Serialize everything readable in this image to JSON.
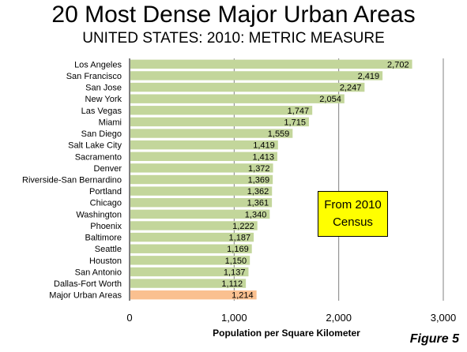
{
  "title": "20 Most Dense Major Urban Areas",
  "subtitle": "UNITED STATES: 2010: METRIC MEASURE",
  "callout": {
    "line1": "From 2010",
    "line2": "Census"
  },
  "figure_label": "Figure 5",
  "colors": {
    "bar": "#c3d69b",
    "highlight_bar": "#fac090",
    "grid": "#808080",
    "callout": "#ffff00"
  },
  "chart_data": {
    "type": "bar",
    "orientation": "horizontal",
    "categories": [
      "Los Angeles",
      "San Francisco",
      "San Jose",
      "New York",
      "Las Vegas",
      "Miami",
      "San Diego",
      "Salt Lake City",
      "Sacramento",
      "Denver",
      "Riverside-San Bernardino",
      "Portland",
      "Chicago",
      "Washington",
      "Phoenix",
      "Baltimore",
      "Seattle",
      "Houston",
      "San Antonio",
      "Dallas-Fort Worth",
      "Major Urban Areas"
    ],
    "values": [
      2702,
      2419,
      2247,
      2054,
      1747,
      1715,
      1559,
      1419,
      1413,
      1372,
      1369,
      1362,
      1361,
      1340,
      1222,
      1187,
      1169,
      1150,
      1137,
      1112,
      1214
    ],
    "value_labels": [
      "2,702",
      "2,419",
      "2,247",
      "2,054",
      "1,747",
      "1,715",
      "1,559",
      "1,419",
      "1,413",
      "1,372",
      "1,369",
      "1,362",
      "1,361",
      "1,340",
      "1,222",
      "1,187",
      "1,169",
      "1,150",
      "1,137",
      "1,112",
      "1,214"
    ],
    "highlight_category": "Major Urban Areas",
    "xlim": [
      0,
      3000
    ],
    "xticks": [
      0,
      1000,
      2000,
      3000
    ],
    "xtick_labels": [
      "0",
      "1,000",
      "2,000",
      "3,000"
    ],
    "xlabel": "Population per Square Kilometer",
    "grid": "vertical"
  }
}
